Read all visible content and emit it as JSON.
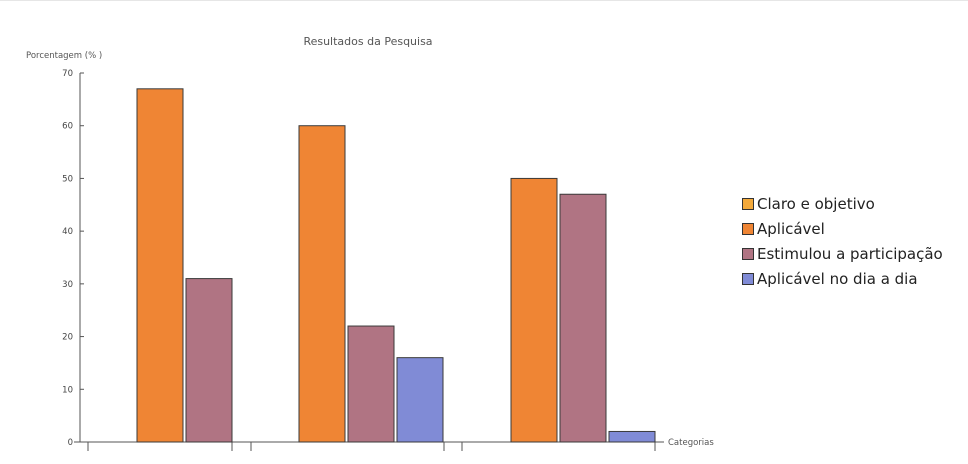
{
  "chart_data": {
    "type": "bar",
    "title": "Resultados  da  Pesquisa",
    "ylabel": "Porcentagem (% )",
    "xlabel": "Categorias",
    "ylim": [
      0,
      70
    ],
    "yticks": [
      "0",
      "10",
      "20",
      "30",
      "40",
      "50",
      "60",
      "70"
    ],
    "groups": 3,
    "series": [
      {
        "name": "Claro e objetivo",
        "color": "#f3a93a",
        "values": [
          null,
          null,
          null
        ]
      },
      {
        "name": "Aplicável",
        "color": "#ef8534",
        "values": [
          67,
          60,
          50
        ]
      },
      {
        "name": "Estimulou a participação",
        "color": "#b07483",
        "values": [
          31,
          22,
          47
        ]
      },
      {
        "name": "Aplicável no dia a dia",
        "color": "#808bd6",
        "values": [
          null,
          16,
          2
        ]
      }
    ],
    "grid": false,
    "legend_position": "right"
  }
}
